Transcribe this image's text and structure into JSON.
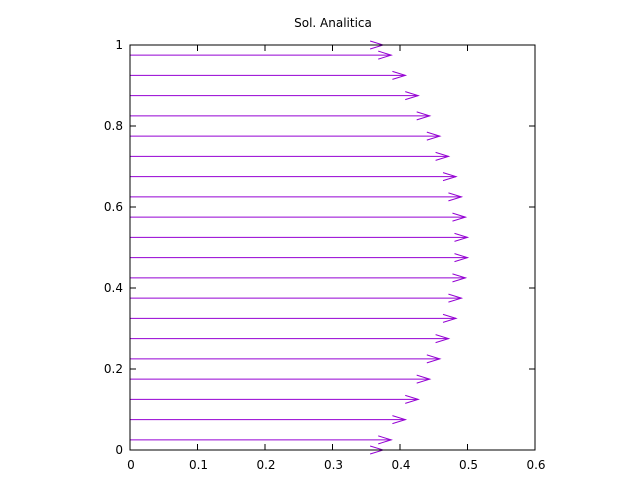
{
  "chart_data": {
    "type": "vector-field",
    "title": "Sol. Analitica",
    "xlabel": "",
    "ylabel": "",
    "xlim": [
      0,
      0.6
    ],
    "ylim": [
      0,
      1
    ],
    "xticks": [
      "0",
      "0.1",
      "0.2",
      "0.3",
      "0.4",
      "0.5",
      "0.6"
    ],
    "yticks": [
      "0",
      "0.2",
      "0.4",
      "0.6",
      "0.8",
      "1"
    ],
    "arrow_color": "#9400d3",
    "grid": false,
    "arrows": [
      {
        "y": 0.0,
        "u": 0.375
      },
      {
        "y": 0.025,
        "u": 0.387
      },
      {
        "y": 0.075,
        "u": 0.408
      },
      {
        "y": 0.125,
        "u": 0.427
      },
      {
        "y": 0.175,
        "u": 0.444
      },
      {
        "y": 0.225,
        "u": 0.459
      },
      {
        "y": 0.275,
        "u": 0.472
      },
      {
        "y": 0.325,
        "u": 0.483
      },
      {
        "y": 0.375,
        "u": 0.491
      },
      {
        "y": 0.425,
        "u": 0.497
      },
      {
        "y": 0.475,
        "u": 0.5
      },
      {
        "y": 0.525,
        "u": 0.5
      },
      {
        "y": 0.575,
        "u": 0.497
      },
      {
        "y": 0.625,
        "u": 0.491
      },
      {
        "y": 0.675,
        "u": 0.483
      },
      {
        "y": 0.725,
        "u": 0.472
      },
      {
        "y": 0.775,
        "u": 0.459
      },
      {
        "y": 0.825,
        "u": 0.444
      },
      {
        "y": 0.875,
        "u": 0.427
      },
      {
        "y": 0.925,
        "u": 0.408
      },
      {
        "y": 0.975,
        "u": 0.387
      },
      {
        "y": 1.0,
        "u": 0.375
      }
    ]
  }
}
